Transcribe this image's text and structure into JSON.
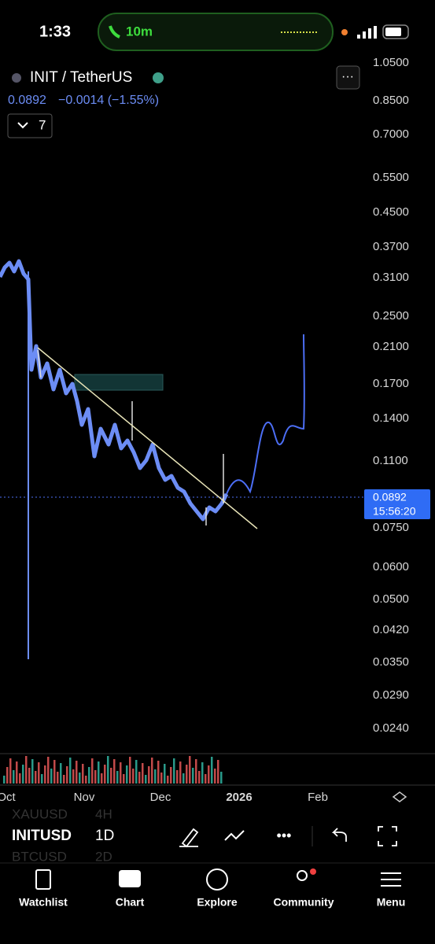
{
  "status_bar": {
    "time": "1:33",
    "call": "10m"
  },
  "header": {
    "symbol": "INIT / TetherUS",
    "price": "0.0892",
    "change": "−0.0014 (−1.55%)",
    "indicator_count": "7"
  },
  "price_axis": {
    "labels": [
      "1.0500",
      "0.8500",
      "0.7000",
      "0.5500",
      "0.4500",
      "0.3700",
      "0.3100",
      "0.2500",
      "0.2100",
      "0.1700",
      "0.1400",
      "0.1100",
      "0.0750",
      "0.0600",
      "0.0500",
      "0.0420",
      "0.0350",
      "0.0290",
      "0.0240"
    ],
    "current_price": "0.0892",
    "countdown": "15:56:20"
  },
  "time_axis": {
    "labels": [
      "Oct",
      "Nov",
      "Dec",
      "2026",
      "Feb"
    ]
  },
  "toolbar": {
    "symbol": "INITUSD",
    "interval": "1D",
    "prev_symbol": "XAUUSD",
    "prev_interval": "4H",
    "next_symbol": "BTCUSD",
    "next_interval": "2D"
  },
  "tab_bar": {
    "tabs": [
      "Watchlist",
      "Chart",
      "Explore",
      "Community",
      "Menu"
    ]
  }
}
